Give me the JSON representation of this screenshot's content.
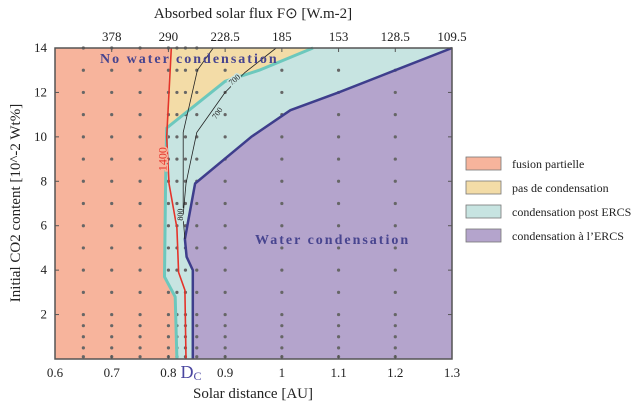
{
  "chart_data": {
    "type": "area",
    "title": "",
    "xlabel": "Solar distance [AU]",
    "ylabel": "Initial CO2 content [10^-2 Wt%]",
    "top_xlabel": "Absorbed solar flux F⊙ [W.m-2]",
    "xlim": [
      0.6,
      1.3
    ],
    "ylim": [
      0,
      14
    ],
    "x_ticks": [
      0.6,
      0.7,
      0.8,
      0.9,
      1.0,
      1.1,
      1.2,
      1.3
    ],
    "x_tick_labels": [
      "0.6",
      "0.7",
      "0.8",
      "0.9",
      "1",
      "1.1",
      "1.2",
      "1.3"
    ],
    "y_ticks": [
      2,
      4,
      6,
      8,
      10,
      12,
      14
    ],
    "y_tick_labels": [
      "2",
      "4",
      "6",
      "8",
      "10",
      "12",
      "14"
    ],
    "top_ticks": [
      0.7,
      0.8,
      0.9,
      1.0,
      1.1,
      1.2,
      1.3
    ],
    "top_tick_labels": [
      "378",
      "290",
      "228.5",
      "185",
      "153",
      "128.5",
      "109.5"
    ],
    "dc_label": "D",
    "dc_sub": "C",
    "dc_x": 0.83,
    "annotations": {
      "no_water": "No water condensation",
      "water": "Water condensation"
    },
    "regions": [
      {
        "name": "condensation post ERCS",
        "color": "#c7e4e1",
        "points": [
          [
            0.6,
            0
          ],
          [
            0.6,
            14
          ],
          [
            1.3,
            14
          ],
          [
            1.3,
            0
          ]
        ]
      },
      {
        "name": "fusion partielle",
        "color": "#f7b49c",
        "points": [
          [
            0.6,
            0
          ],
          [
            0.6,
            14
          ],
          [
            0.803,
            14
          ],
          [
            0.797,
            10.4
          ],
          [
            0.795,
            8
          ],
          [
            0.793,
            3.7
          ],
          [
            0.812,
            2.8
          ],
          [
            0.815,
            0
          ]
        ]
      },
      {
        "name": "pas de condensation",
        "color": "#f3dca7",
        "points": [
          [
            0.803,
            14
          ],
          [
            0.797,
            10.4
          ],
          [
            0.9,
            12.5
          ],
          [
            0.96,
            13.0
          ],
          [
            1.055,
            14
          ]
        ]
      },
      {
        "name": "condensation à l’ERCS",
        "color": "#b4a4cc",
        "points": [
          [
            0.843,
            0
          ],
          [
            0.843,
            4.0
          ],
          [
            0.832,
            4.6
          ],
          [
            0.829,
            5.4
          ],
          [
            0.847,
            7.9
          ],
          [
            0.946,
            10
          ],
          [
            1.015,
            11.2
          ],
          [
            1.1,
            12
          ],
          [
            1.2,
            13
          ],
          [
            1.3,
            14
          ],
          [
            1.3,
            0
          ]
        ]
      }
    ],
    "boundaries": [
      {
        "name": "cyan-boundary",
        "color": "#6cc8bd",
        "width": 3,
        "points": [
          [
            0.815,
            0
          ],
          [
            0.812,
            2.8
          ],
          [
            0.793,
            3.7
          ],
          [
            0.795,
            8
          ],
          [
            0.797,
            10.4
          ],
          [
            0.9,
            12.5
          ],
          [
            0.96,
            13.0
          ],
          [
            1.055,
            14
          ]
        ]
      },
      {
        "name": "ercs-boundary",
        "color": "#3e3e8c",
        "width": 2.5,
        "points": [
          [
            0.843,
            0
          ],
          [
            0.843,
            4.0
          ],
          [
            0.832,
            4.6
          ],
          [
            0.829,
            5.4
          ],
          [
            0.847,
            7.9
          ],
          [
            0.946,
            10
          ],
          [
            1.015,
            11.2
          ],
          [
            1.1,
            12
          ],
          [
            1.2,
            13
          ],
          [
            1.3,
            14
          ]
        ]
      }
    ],
    "contours": [
      {
        "level": "1400",
        "color": "#e4332a",
        "label_at": [
          0.797,
          9.0
        ],
        "points": [
          [
            0.805,
            14
          ],
          [
            0.797,
            10
          ],
          [
            0.801,
            7.9
          ],
          [
            0.815,
            5.9
          ],
          [
            0.818,
            3.9
          ],
          [
            0.829,
            3.1
          ],
          [
            0.831,
            0
          ]
        ]
      },
      {
        "level": "800",
        "color": "#222222",
        "label_at": [
          0.826,
          6.5
        ],
        "points": [
          [
            0.879,
            14
          ],
          [
            0.851,
            13.0
          ],
          [
            0.826,
            10.2
          ],
          [
            0.826,
            6.3
          ],
          [
            0.829,
            5.4
          ]
        ]
      },
      {
        "level": "700",
        "color": "#222222",
        "label_at": [
          0.93,
          12.8
        ],
        "points": [
          [
            0.99,
            14
          ],
          [
            0.935,
            12.9
          ],
          [
            0.9,
            12.0
          ],
          [
            0.85,
            10.2
          ],
          [
            0.835,
            8.4
          ],
          [
            0.831,
            7.9
          ],
          [
            0.826,
            6.5
          ]
        ]
      }
    ],
    "contour_label_700b": [
      0.89,
      11.0
    ],
    "sample_x": [
      0.65,
      0.7,
      0.75,
      0.8,
      0.815,
      0.83,
      0.85,
      0.9,
      1.0,
      1.1,
      1.2
    ],
    "sample_y": [
      0.1,
      0.5,
      1,
      1.5,
      2,
      3,
      4,
      5,
      6,
      7,
      8,
      9,
      10,
      11,
      12,
      13,
      14
    ],
    "legend": {
      "placement": "right",
      "items": [
        {
          "label": "fusion partielle",
          "color": "#f7b49c"
        },
        {
          "label": "pas de condensation",
          "color": "#f3dca7"
        },
        {
          "label": "condensation post ERCS",
          "color": "#c7e4e1"
        },
        {
          "label": "condensation à l’ERCS",
          "color": "#b4a4cc"
        }
      ]
    }
  }
}
